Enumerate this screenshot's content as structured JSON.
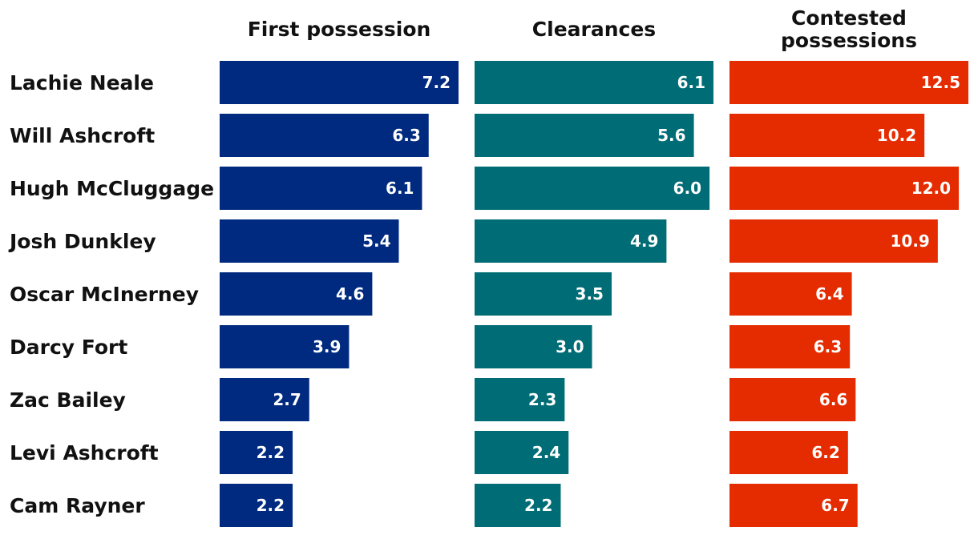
{
  "chart_data": {
    "type": "bar",
    "orientation": "horizontal",
    "categories": [
      "Lachie Neale",
      "Will Ashcroft",
      "Hugh McCluggage",
      "Josh Dunkley",
      "Oscar McInerney",
      "Darcy Fort",
      "Zac Bailey",
      "Levi Ashcroft",
      "Cam Rayner"
    ],
    "series": [
      {
        "name": "First possession",
        "color": "#002a7f",
        "values": [
          7.2,
          6.3,
          6.1,
          5.4,
          4.6,
          3.9,
          2.7,
          2.2,
          2.2
        ],
        "labels": [
          "7.2",
          "6.3",
          "6.1",
          "5.4",
          "4.6",
          "3.9",
          "2.7",
          "2.2",
          "2.2"
        ]
      },
      {
        "name": "Clearances",
        "color": "#006c75",
        "values": [
          6.1,
          5.6,
          6.0,
          4.9,
          3.5,
          3.0,
          2.3,
          2.4,
          2.2
        ],
        "labels": [
          "6.1",
          "5.6",
          "6.0",
          "4.9",
          "3.5",
          "3.0",
          "2.3",
          "2.4",
          "2.2"
        ]
      },
      {
        "name": "Contested possessions",
        "header_lines": [
          "Contested",
          "possessions"
        ],
        "color": "#e52b00",
        "values": [
          12.5,
          10.2,
          12.0,
          10.9,
          6.4,
          6.3,
          6.6,
          6.2,
          6.7
        ],
        "labels": [
          "12.5",
          "10.2",
          "12.0",
          "10.9",
          "6.4",
          "6.3",
          "6.6",
          "6.2",
          "6.7"
        ]
      }
    ],
    "grid": false,
    "legend": "none"
  }
}
